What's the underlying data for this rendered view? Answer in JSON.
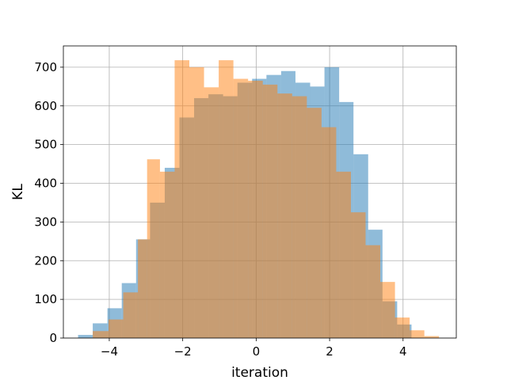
{
  "chart_data": {
    "type": "bar",
    "subtype": "overlapping-histogram",
    "title": "",
    "xlabel": "iteration",
    "ylabel": "KL",
    "xlim": [
      -5.25,
      5.45
    ],
    "ylim": [
      0,
      755
    ],
    "xticks": [
      -4,
      -2,
      0,
      2,
      4
    ],
    "xtick_labels": [
      "−4",
      "−2",
      "0",
      "2",
      "4"
    ],
    "yticks": [
      0,
      100,
      200,
      300,
      400,
      500,
      600,
      700
    ],
    "ytick_labels": [
      "0",
      "100",
      "200",
      "300",
      "400",
      "500",
      "600",
      "700"
    ],
    "grid": true,
    "legend": "none",
    "series": [
      {
        "color": "#1f77b4",
        "opacity": 0.5,
        "bin_edges": [
          -4.85,
          -4.45,
          -4.05,
          -3.66,
          -3.27,
          -2.89,
          -2.49,
          -2.09,
          -1.69,
          -1.3,
          -0.9,
          -0.51,
          -0.11,
          0.28,
          0.68,
          1.07,
          1.47,
          1.86,
          2.26,
          2.65,
          3.05,
          3.44,
          3.84,
          4.23
        ],
        "counts": [
          8,
          38,
          77,
          142,
          255,
          350,
          440,
          570,
          620,
          630,
          625,
          660,
          670,
          680,
          690,
          660,
          650,
          700,
          610,
          475,
          280,
          95,
          35
        ]
      },
      {
        "color": "#ff7f0e",
        "opacity": 0.5,
        "bin_edges": [
          -4.45,
          -4.02,
          -3.62,
          -3.22,
          -2.97,
          -2.62,
          -2.22,
          -1.82,
          -1.42,
          -1.02,
          -0.62,
          -0.22,
          0.18,
          0.58,
          0.98,
          1.38,
          1.78,
          2.18,
          2.58,
          2.98,
          3.38,
          3.78,
          4.18,
          4.58,
          4.98
        ],
        "counts": [
          18,
          48,
          118,
          255,
          462,
          430,
          718,
          700,
          648,
          718,
          670,
          665,
          655,
          632,
          625,
          595,
          545,
          430,
          325,
          240,
          145,
          53,
          20,
          5
        ]
      }
    ]
  }
}
